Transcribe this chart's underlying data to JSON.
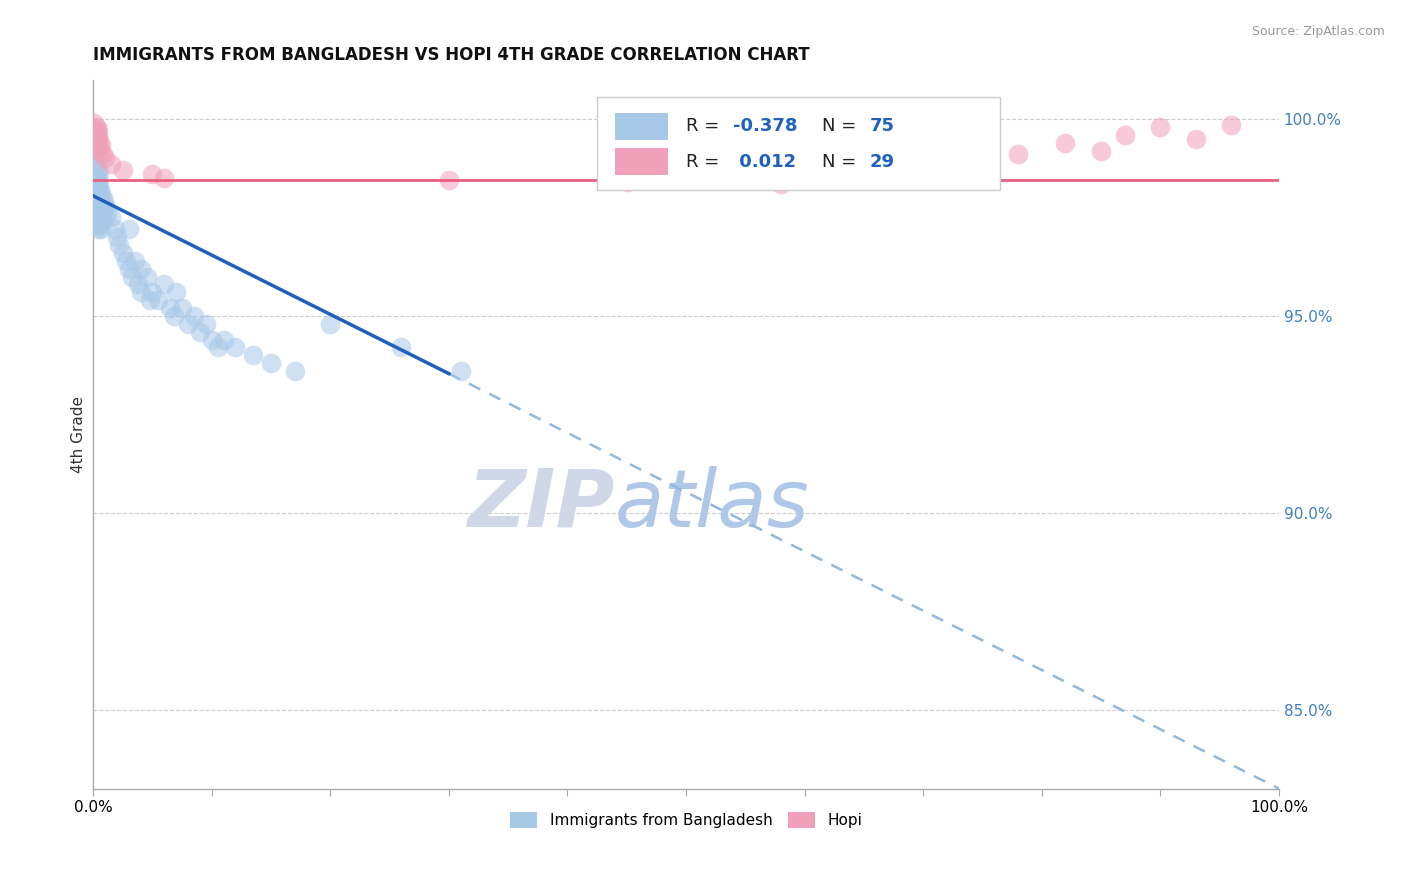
{
  "title": "IMMIGRANTS FROM BANGLADESH VS HOPI 4TH GRADE CORRELATION CHART",
  "source": "Source: ZipAtlas.com",
  "ylabel": "4th Grade",
  "legend_blue_label": "Immigrants from Bangladesh",
  "legend_pink_label": "Hopi",
  "R_blue": -0.378,
  "N_blue": 75,
  "R_pink": 0.012,
  "N_pink": 29,
  "blue_color": "#A8C8E8",
  "pink_color": "#F0A0B8",
  "trend_blue_color": "#2060C0",
  "trend_pink_color": "#E86080",
  "dashed_line_color": "#90B8E0",
  "watermark_zip": "ZIP",
  "watermark_atlas": "atlas",
  "blue_dots": [
    [
      0.001,
      0.9905
    ],
    [
      0.001,
      0.9875
    ],
    [
      0.002,
      0.993
    ],
    [
      0.002,
      0.985
    ],
    [
      0.002,
      0.982
    ],
    [
      0.002,
      0.979
    ],
    [
      0.002,
      0.976
    ],
    [
      0.003,
      0.988
    ],
    [
      0.003,
      0.985
    ],
    [
      0.003,
      0.982
    ],
    [
      0.003,
      0.979
    ],
    [
      0.003,
      0.976
    ],
    [
      0.003,
      0.973
    ],
    [
      0.004,
      0.987
    ],
    [
      0.004,
      0.984
    ],
    [
      0.004,
      0.981
    ],
    [
      0.004,
      0.978
    ],
    [
      0.004,
      0.975
    ],
    [
      0.004,
      0.972
    ],
    [
      0.005,
      0.986
    ],
    [
      0.005,
      0.983
    ],
    [
      0.005,
      0.98
    ],
    [
      0.005,
      0.977
    ],
    [
      0.005,
      0.974
    ],
    [
      0.006,
      0.982
    ],
    [
      0.006,
      0.979
    ],
    [
      0.006,
      0.976
    ],
    [
      0.006,
      0.973
    ],
    [
      0.007,
      0.981
    ],
    [
      0.007,
      0.978
    ],
    [
      0.007,
      0.975
    ],
    [
      0.007,
      0.972
    ],
    [
      0.008,
      0.98
    ],
    [
      0.008,
      0.977
    ],
    [
      0.008,
      0.974
    ],
    [
      0.009,
      0.979
    ],
    [
      0.01,
      0.978
    ],
    [
      0.01,
      0.975
    ],
    [
      0.012,
      0.976
    ],
    [
      0.015,
      0.975
    ],
    [
      0.018,
      0.972
    ],
    [
      0.02,
      0.97
    ],
    [
      0.022,
      0.968
    ],
    [
      0.025,
      0.966
    ],
    [
      0.028,
      0.964
    ],
    [
      0.03,
      0.972
    ],
    [
      0.03,
      0.962
    ],
    [
      0.033,
      0.96
    ],
    [
      0.035,
      0.964
    ],
    [
      0.038,
      0.958
    ],
    [
      0.04,
      0.962
    ],
    [
      0.04,
      0.956
    ],
    [
      0.045,
      0.96
    ],
    [
      0.048,
      0.954
    ],
    [
      0.05,
      0.956
    ],
    [
      0.055,
      0.954
    ],
    [
      0.06,
      0.958
    ],
    [
      0.065,
      0.952
    ],
    [
      0.068,
      0.95
    ],
    [
      0.07,
      0.956
    ],
    [
      0.075,
      0.952
    ],
    [
      0.08,
      0.948
    ],
    [
      0.085,
      0.95
    ],
    [
      0.09,
      0.946
    ],
    [
      0.095,
      0.948
    ],
    [
      0.1,
      0.944
    ],
    [
      0.105,
      0.942
    ],
    [
      0.11,
      0.944
    ],
    [
      0.12,
      0.942
    ],
    [
      0.135,
      0.94
    ],
    [
      0.15,
      0.938
    ],
    [
      0.17,
      0.936
    ],
    [
      0.2,
      0.948
    ],
    [
      0.26,
      0.942
    ],
    [
      0.31,
      0.936
    ]
  ],
  "pink_dots": [
    [
      0.001,
      0.999
    ],
    [
      0.002,
      0.9965
    ],
    [
      0.002,
      0.998
    ],
    [
      0.003,
      0.997
    ],
    [
      0.003,
      0.9955
    ],
    [
      0.004,
      0.9975
    ],
    [
      0.004,
      0.996
    ],
    [
      0.005,
      0.9945
    ],
    [
      0.005,
      0.993
    ],
    [
      0.006,
      0.992
    ],
    [
      0.007,
      0.9935
    ],
    [
      0.008,
      0.991
    ],
    [
      0.01,
      0.99
    ],
    [
      0.015,
      0.9885
    ],
    [
      0.025,
      0.987
    ],
    [
      0.05,
      0.986
    ],
    [
      0.06,
      0.985
    ],
    [
      0.3,
      0.9845
    ],
    [
      0.45,
      0.984
    ],
    [
      0.58,
      0.9835
    ],
    [
      0.68,
      0.9855
    ],
    [
      0.73,
      0.9875
    ],
    [
      0.78,
      0.991
    ],
    [
      0.82,
      0.994
    ],
    [
      0.85,
      0.992
    ],
    [
      0.87,
      0.996
    ],
    [
      0.9,
      0.998
    ],
    [
      0.93,
      0.995
    ],
    [
      0.96,
      0.9985
    ]
  ],
  "ylim": [
    0.83,
    1.01
  ],
  "xlim": [
    0.0,
    1.0
  ],
  "yticks_right": [
    0.85,
    0.9,
    0.95,
    1.0
  ],
  "ytick_labels_right": [
    "85.0%",
    "90.0%",
    "95.0%",
    "100.0%"
  ],
  "xticks": [
    0.0,
    0.1,
    0.2,
    0.3,
    0.4,
    0.5,
    0.6,
    0.7,
    0.8,
    0.9,
    1.0
  ],
  "trend_line_x_start": 0.0,
  "trend_line_x_end": 1.0,
  "trend_line_y_start": 0.9805,
  "trend_line_y_end": 0.83,
  "trend_solid_x_end": 0.3,
  "pink_hline_y": 0.9845,
  "background_color": "#FFFFFF"
}
